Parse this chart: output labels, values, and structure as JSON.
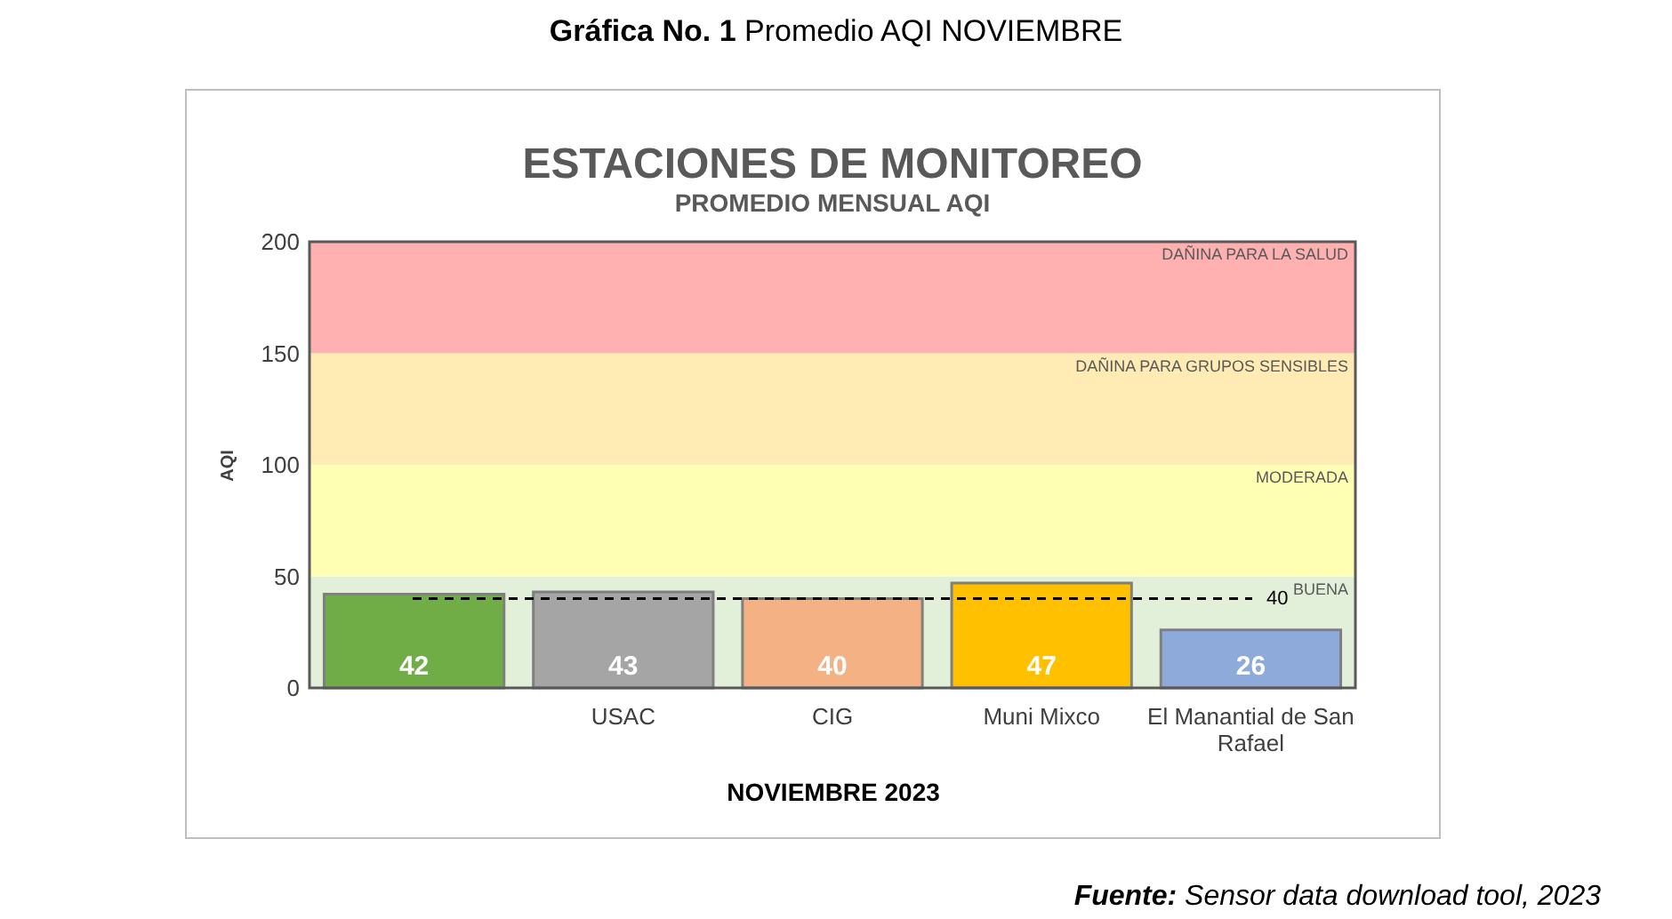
{
  "chart_data": {
    "type": "bar",
    "title": "ESTACIONES DE MONITOREO",
    "subtitle": "PROMEDIO MENSUAL AQI",
    "xlabel": "NOVIEMBRE 2023",
    "ylabel": "AQI",
    "categories": [
      null,
      "USAC",
      "CIG",
      "Muni Mixco",
      "El Manantial de San Rafael"
    ],
    "values": [
      42,
      43,
      40,
      47,
      26
    ],
    "colors": [
      "#70ad47",
      "#a5a5a5",
      "#f4b183",
      "#ffc000",
      "#8eaadb"
    ],
    "ylim": [
      0,
      200
    ],
    "yticks": [
      0,
      50,
      100,
      150,
      200
    ],
    "grid": false,
    "data_labels": true,
    "bands": [
      {
        "axis": "y",
        "from": 0,
        "to": 50,
        "label": "BUENA",
        "color": "#e2efd9"
      },
      {
        "axis": "y",
        "from": 50,
        "to": 100,
        "label": "MODERADA",
        "color": "#ffffb3"
      },
      {
        "axis": "y",
        "from": 100,
        "to": 150,
        "label": "DAÑINA PARA  GRUPOS SENSIBLES",
        "color": "#ffebb3"
      },
      {
        "axis": "y",
        "from": 150,
        "to": 200,
        "label": "DAÑINA PARA LA SALUD",
        "color": "#ffb0b0"
      }
    ],
    "ref_lines": [
      {
        "axis": "y",
        "value": 40,
        "label": "40",
        "color": "#000000",
        "line_style": "dashed"
      }
    ],
    "annotations": [
      "Gráfica No. 1 Promedio AQI NOVIEMBRE",
      "Fuente: Sensor data download tool, 2023"
    ]
  }
}
